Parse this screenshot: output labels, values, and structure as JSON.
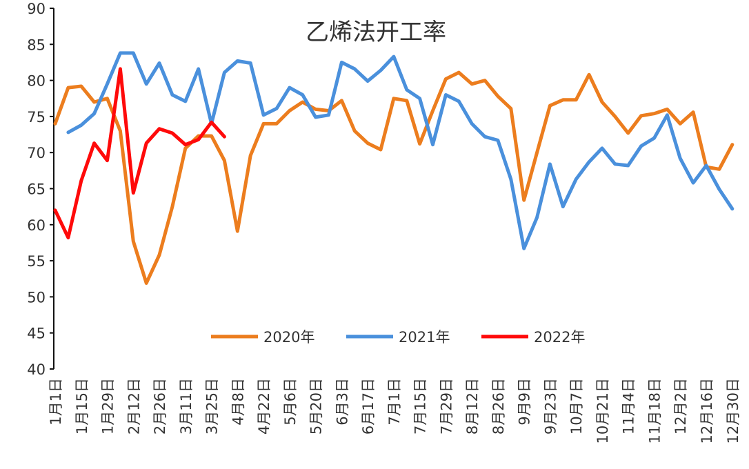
{
  "chart_data": {
    "type": "line",
    "title": "乙烯法开工率",
    "xlabel": "",
    "ylabel": "",
    "ylim": [
      40,
      90
    ],
    "yticks": [
      40,
      45,
      50,
      55,
      60,
      65,
      70,
      75,
      80,
      85,
      90
    ],
    "x_tick_labels": [
      "1月1日",
      "1月15日",
      "1月29日",
      "2月12日",
      "2月26日",
      "3月11日",
      "3月25日",
      "4月8日",
      "4月22日",
      "5月6日",
      "5月20日",
      "6月3日",
      "6月17日",
      "7月1日",
      "7月15日",
      "7月29日",
      "8月12日",
      "8月26日",
      "9月9日",
      "9月23日",
      "10月7日",
      "10月21日",
      "11月4日",
      "11月18日",
      "12月2日",
      "12月16日",
      "12月30日"
    ],
    "grid": false,
    "legend_position": "bottom-center",
    "series": [
      {
        "name": "2020年",
        "color": "#EC7D1E",
        "values": [
          74,
          79,
          79.2,
          77,
          77.5,
          73,
          57.7,
          51.9,
          55.8,
          62.5,
          70.6,
          72.3,
          72.3,
          68.9,
          59.1,
          69.6,
          74,
          74,
          75.8,
          77,
          76,
          75.8,
          77.2,
          73,
          71.3,
          70.4,
          77.5,
          77.2,
          71.2,
          75.8,
          80.2,
          81.1,
          79.5,
          80,
          77.8,
          76.1,
          63.4,
          70,
          76.5,
          77.3,
          77.3,
          80.8,
          77,
          75,
          72.7,
          75.1,
          75.4,
          76,
          74,
          75.6,
          68,
          67.7,
          71.1
        ]
      },
      {
        "name": "2021年",
        "color": "#4A90DC",
        "values": [
          null,
          72.8,
          73.8,
          75.4,
          79.5,
          83.8,
          83.8,
          79.5,
          82.4,
          78,
          77.1,
          81.6,
          74,
          81.1,
          82.7,
          82.4,
          75.2,
          76.1,
          79,
          78,
          74.9,
          75.2,
          82.5,
          81.6,
          79.9,
          81.4,
          83.3,
          78.7,
          77.5,
          71.1,
          78,
          77.1,
          74,
          72.2,
          71.7,
          66.3,
          56.7,
          61,
          68.4,
          62.5,
          66.3,
          68.7,
          70.6,
          68.4,
          68.2,
          70.9,
          72,
          75.2,
          69.2,
          65.8,
          68.2,
          64.9,
          62.2
        ]
      },
      {
        "name": "2022年",
        "color": "#FF0A0A",
        "values": [
          62,
          58.2,
          66.1,
          71.3,
          68.9,
          81.6,
          64.4,
          71.3,
          73.3,
          72.7,
          71.1,
          71.8,
          74.2,
          72.2
        ]
      }
    ]
  }
}
